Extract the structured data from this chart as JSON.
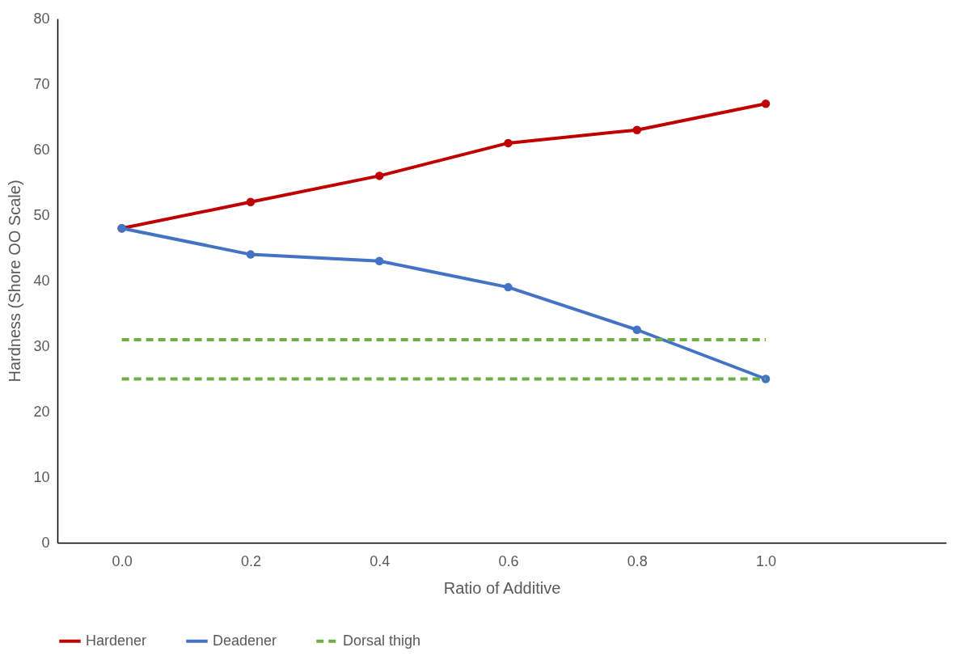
{
  "chart_data": {
    "type": "line",
    "xlabel": "Ratio of Additive",
    "ylabel": "Hardness (Shore OO Scale)",
    "x": [
      0,
      0.2,
      0.4,
      0.6,
      0.8,
      1.0
    ],
    "xlim": [
      -0.1,
      1.28
    ],
    "xticks": [
      {
        "value": 0,
        "label": "0.0"
      },
      {
        "value": 0.2,
        "label": "0.2"
      },
      {
        "value": 0.4,
        "label": "0.4"
      },
      {
        "value": 0.6,
        "label": "0.6"
      },
      {
        "value": 0.8,
        "label": "0.8"
      },
      {
        "value": 1.0,
        "label": "1.0"
      }
    ],
    "ylim": [
      0,
      80
    ],
    "yticks": [
      0,
      10,
      20,
      30,
      40,
      50,
      60,
      70,
      80
    ],
    "grid": false,
    "legend": "bottom",
    "series": [
      {
        "name": "Hardener",
        "color": "#c00000",
        "marker": "circle",
        "line_style": "solid",
        "values": [
          48,
          52,
          56,
          61,
          63,
          67
        ]
      },
      {
        "name": "Deadener",
        "color": "#4472c4",
        "marker": "circle",
        "line_style": "solid",
        "values": [
          48,
          44,
          43,
          39,
          32.5,
          25
        ]
      },
      {
        "name": "Dorsal thigh",
        "color": "#70ad47",
        "marker": "none",
        "line_style": "dashed",
        "values": [
          31,
          31,
          31,
          31,
          31,
          31
        ]
      },
      {
        "color": "#70ad47",
        "marker": "none",
        "line_style": "dashed",
        "values": [
          25,
          25,
          25,
          25,
          25,
          25
        ]
      }
    ]
  }
}
